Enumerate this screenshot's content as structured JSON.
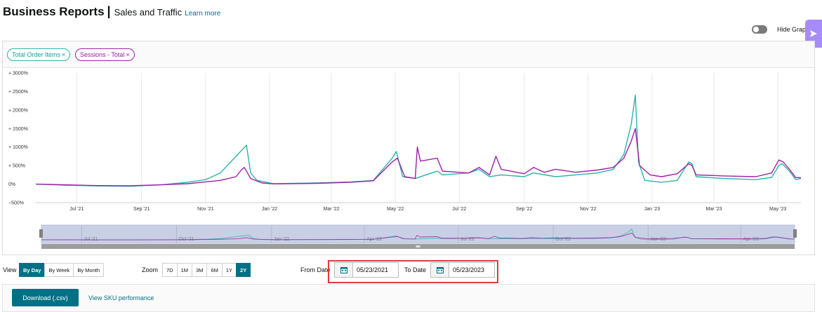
{
  "header": {
    "title": "Business Reports",
    "separator": "|",
    "subtitle": "Sales and Traffic",
    "learn_more": "Learn more"
  },
  "graph_toggle": {
    "label": "Hide Graph",
    "on": false
  },
  "side_tab": {
    "icon": "send-icon",
    "color": "#a78bfa"
  },
  "legend": [
    {
      "label": "Total Order Items",
      "close": "×",
      "color": "#2ab5a6"
    },
    {
      "label": "Sessions - Total",
      "close": "×",
      "color": "#a021a8"
    }
  ],
  "chart_data": {
    "type": "line",
    "y_unit": "percent change",
    "ylim": [
      -500,
      3000
    ],
    "y_ticks": [
      {
        "v": 3000,
        "label": "+ 3000%"
      },
      {
        "v": 2500,
        "label": "+ 2500%"
      },
      {
        "v": 2000,
        "label": "+ 2000%"
      },
      {
        "v": 1500,
        "label": "+ 1500%"
      },
      {
        "v": 1000,
        "label": "+ 1000%"
      },
      {
        "v": 500,
        "label": "+ 500%"
      },
      {
        "v": 0,
        "label": "0%"
      },
      {
        "v": -500,
        "label": "−500%"
      }
    ],
    "x_range": [
      "2021-05-23",
      "2023-05-23"
    ],
    "x_ticks": [
      {
        "date": "2021-07-01",
        "label": "Jul '21"
      },
      {
        "date": "2021-09-01",
        "label": "Sep '21"
      },
      {
        "date": "2021-11-01",
        "label": "Nov '21"
      },
      {
        "date": "2022-01-01",
        "label": "Jan '22"
      },
      {
        "date": "2022-03-01",
        "label": "Mar '22"
      },
      {
        "date": "2022-05-01",
        "label": "May '22"
      },
      {
        "date": "2022-07-01",
        "label": "Jul '22"
      },
      {
        "date": "2022-09-01",
        "label": "Sep '22"
      },
      {
        "date": "2022-11-01",
        "label": "Nov '22"
      },
      {
        "date": "2023-01-01",
        "label": "Jan '23"
      },
      {
        "date": "2023-03-01",
        "label": "Mar '23"
      },
      {
        "date": "2023-05-01",
        "label": "May '23"
      }
    ],
    "navigator_ticks": [
      {
        "date": "2021-07-01",
        "label": "Jul '21"
      },
      {
        "date": "2021-10-01",
        "label": "Oct '21"
      },
      {
        "date": "2022-01-01",
        "label": "Jan '22"
      },
      {
        "date": "2022-04-01",
        "label": "Apr '22"
      },
      {
        "date": "2022-07-01",
        "label": "Jul '22"
      },
      {
        "date": "2022-10-01",
        "label": "Oct '22"
      },
      {
        "date": "2023-01-01",
        "label": "Jan '23"
      },
      {
        "date": "2023-04-01",
        "label": "Apr '23"
      }
    ],
    "grid": "vertical",
    "series": [
      {
        "name": "Total Order Items",
        "color": "#2ab5a6",
        "points": [
          [
            "2021-05-23",
            0
          ],
          [
            "2021-06-20",
            -30
          ],
          [
            "2021-07-20",
            -50
          ],
          [
            "2021-08-20",
            -60
          ],
          [
            "2021-09-20",
            -20
          ],
          [
            "2021-10-15",
            50
          ],
          [
            "2021-11-01",
            120
          ],
          [
            "2021-11-15",
            300
          ],
          [
            "2021-11-25",
            600
          ],
          [
            "2021-12-05",
            900
          ],
          [
            "2021-12-10",
            1050
          ],
          [
            "2021-12-14",
            300
          ],
          [
            "2021-12-20",
            100
          ],
          [
            "2022-01-05",
            10
          ],
          [
            "2022-02-15",
            30
          ],
          [
            "2022-03-20",
            60
          ],
          [
            "2022-04-10",
            100
          ],
          [
            "2022-04-28",
            700
          ],
          [
            "2022-05-02",
            880
          ],
          [
            "2022-05-08",
            200
          ],
          [
            "2022-05-20",
            150
          ],
          [
            "2022-06-10",
            350
          ],
          [
            "2022-06-15",
            250
          ],
          [
            "2022-07-10",
            300
          ],
          [
            "2022-07-20",
            400
          ],
          [
            "2022-07-30",
            200
          ],
          [
            "2022-08-10",
            250
          ],
          [
            "2022-09-01",
            200
          ],
          [
            "2022-09-10",
            300
          ],
          [
            "2022-10-01",
            200
          ],
          [
            "2022-10-20",
            250
          ],
          [
            "2022-11-10",
            300
          ],
          [
            "2022-11-25",
            400
          ],
          [
            "2022-12-05",
            800
          ],
          [
            "2022-12-12",
            1600
          ],
          [
            "2022-12-16",
            2400
          ],
          [
            "2022-12-19",
            600
          ],
          [
            "2022-12-25",
            100
          ],
          [
            "2023-01-10",
            50
          ],
          [
            "2023-01-25",
            100
          ],
          [
            "2023-02-05",
            600
          ],
          [
            "2023-02-08",
            550
          ],
          [
            "2023-02-12",
            200
          ],
          [
            "2023-03-10",
            150
          ],
          [
            "2023-04-10",
            120
          ],
          [
            "2023-04-25",
            180
          ],
          [
            "2023-05-02",
            500
          ],
          [
            "2023-05-05",
            550
          ],
          [
            "2023-05-12",
            350
          ],
          [
            "2023-05-18",
            120
          ],
          [
            "2023-05-23",
            150
          ]
        ]
      },
      {
        "name": "Sessions - Total",
        "color": "#a021a8",
        "points": [
          [
            "2021-05-23",
            0
          ],
          [
            "2021-06-20",
            -20
          ],
          [
            "2021-07-20",
            -40
          ],
          [
            "2021-08-20",
            -45
          ],
          [
            "2021-09-20",
            -20
          ],
          [
            "2021-10-15",
            10
          ],
          [
            "2021-11-01",
            60
          ],
          [
            "2021-11-15",
            100
          ],
          [
            "2021-11-30",
            200
          ],
          [
            "2021-12-05",
            380
          ],
          [
            "2021-12-08",
            450
          ],
          [
            "2021-12-14",
            150
          ],
          [
            "2021-12-25",
            30
          ],
          [
            "2022-01-05",
            5
          ],
          [
            "2022-02-15",
            20
          ],
          [
            "2022-03-20",
            50
          ],
          [
            "2022-04-10",
            90
          ],
          [
            "2022-04-28",
            600
          ],
          [
            "2022-05-03",
            700
          ],
          [
            "2022-05-10",
            200
          ],
          [
            "2022-05-20",
            150
          ],
          [
            "2022-05-22",
            1000
          ],
          [
            "2022-05-25",
            620
          ],
          [
            "2022-06-10",
            700
          ],
          [
            "2022-06-15",
            350
          ],
          [
            "2022-07-10",
            300
          ],
          [
            "2022-07-20",
            450
          ],
          [
            "2022-07-30",
            250
          ],
          [
            "2022-08-05",
            750
          ],
          [
            "2022-08-10",
            400
          ],
          [
            "2022-09-01",
            280
          ],
          [
            "2022-09-10",
            450
          ],
          [
            "2022-09-20",
            320
          ],
          [
            "2022-10-01",
            400
          ],
          [
            "2022-10-20",
            320
          ],
          [
            "2022-11-10",
            380
          ],
          [
            "2022-11-25",
            450
          ],
          [
            "2022-12-05",
            700
          ],
          [
            "2022-12-12",
            1150
          ],
          [
            "2022-12-16",
            1500
          ],
          [
            "2022-12-20",
            500
          ],
          [
            "2022-12-30",
            250
          ],
          [
            "2023-01-10",
            200
          ],
          [
            "2023-01-25",
            280
          ],
          [
            "2023-02-05",
            550
          ],
          [
            "2023-02-08",
            500
          ],
          [
            "2023-02-12",
            250
          ],
          [
            "2023-03-10",
            220
          ],
          [
            "2023-04-10",
            200
          ],
          [
            "2023-04-25",
            300
          ],
          [
            "2023-05-02",
            650
          ],
          [
            "2023-05-06",
            600
          ],
          [
            "2023-05-12",
            400
          ],
          [
            "2023-05-18",
            180
          ],
          [
            "2023-05-23",
            170
          ]
        ]
      }
    ]
  },
  "controls": {
    "view": {
      "label": "View",
      "options": [
        {
          "label": "By Day",
          "active": true
        },
        {
          "label": "By Week",
          "active": false
        },
        {
          "label": "By Month",
          "active": false
        }
      ]
    },
    "zoom": {
      "label": "Zoom",
      "options": [
        {
          "label": "7D",
          "active": false
        },
        {
          "label": "1M",
          "active": false
        },
        {
          "label": "3M",
          "active": false
        },
        {
          "label": "6M",
          "active": false
        },
        {
          "label": "1Y",
          "active": false
        },
        {
          "label": "2Y",
          "active": true
        }
      ]
    },
    "from_date": {
      "label": "From Date",
      "value": "05/23/2021"
    },
    "to_date": {
      "label": "To Date",
      "value": "05/23/2023"
    }
  },
  "footer": {
    "download_label": "Download (.csv)",
    "sku_link": "View SKU performance"
  }
}
